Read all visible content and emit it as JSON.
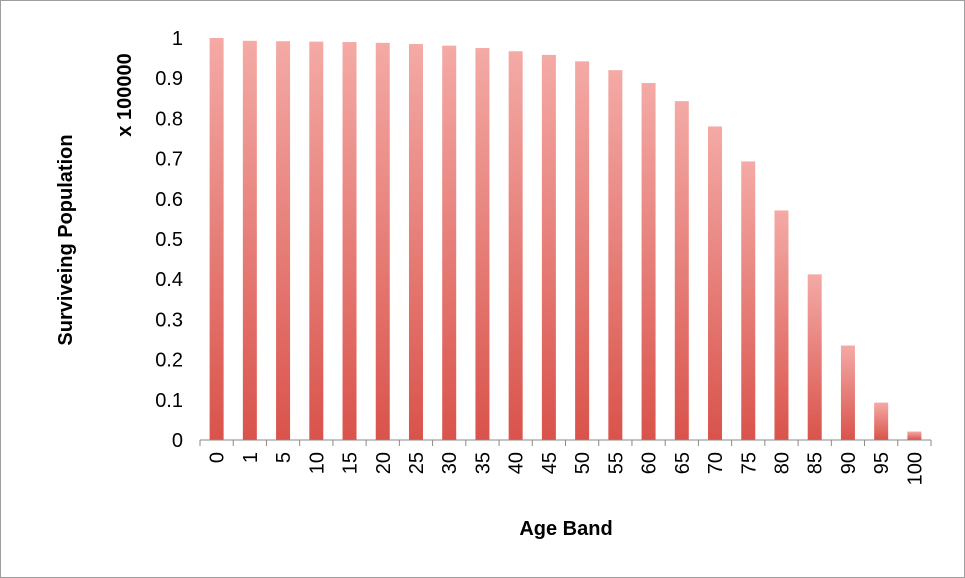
{
  "chart_data": {
    "type": "bar",
    "title": "",
    "xlabel": "Age Band",
    "ylabel": "Surviveing Population",
    "ylabel_unit": "x 100000",
    "categories": [
      "0",
      "1",
      "5",
      "10",
      "15",
      "20",
      "25",
      "30",
      "35",
      "40",
      "45",
      "50",
      "55",
      "60",
      "65",
      "70",
      "75",
      "80",
      "85",
      "90",
      "95",
      "100"
    ],
    "values": [
      1.0,
      0.993,
      0.992,
      0.991,
      0.99,
      0.988,
      0.985,
      0.981,
      0.975,
      0.967,
      0.958,
      0.942,
      0.92,
      0.888,
      0.843,
      0.78,
      0.693,
      0.571,
      0.412,
      0.235,
      0.093,
      0.021
    ],
    "ylim": [
      0,
      1
    ],
    "yticks": [
      "0",
      "0.1",
      "0.2",
      "0.3",
      "0.4",
      "0.5",
      "0.6",
      "0.7",
      "0.8",
      "0.9",
      "1"
    ],
    "grid": false,
    "legend": "none",
    "bar_color_top": "#f4aaa6",
    "bar_color_bottom": "#d9534b"
  }
}
